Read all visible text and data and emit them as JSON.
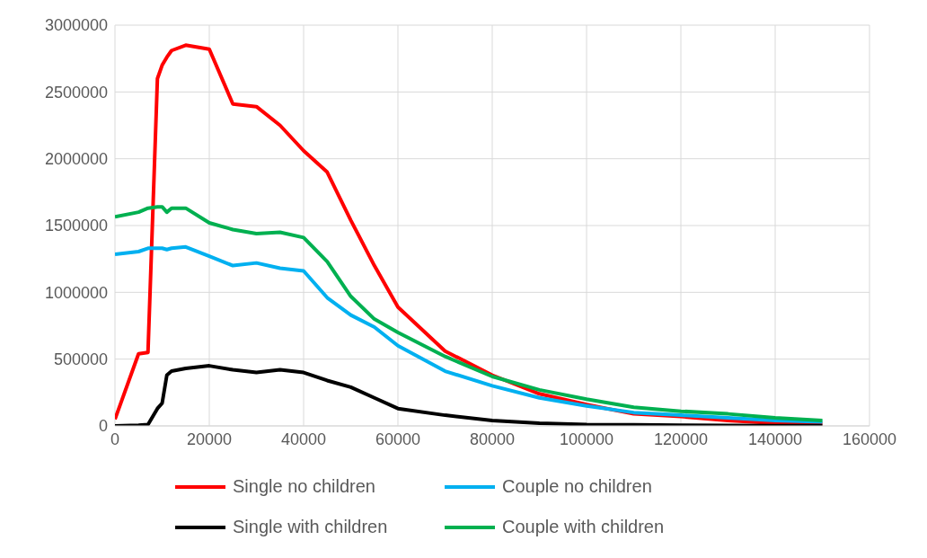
{
  "chart_data": {
    "type": "line",
    "x": [
      0,
      5000,
      7000,
      9000,
      10000,
      11000,
      12000,
      15000,
      20000,
      25000,
      30000,
      35000,
      40000,
      45000,
      50000,
      55000,
      60000,
      70000,
      80000,
      90000,
      100000,
      110000,
      120000,
      130000,
      140000,
      150000
    ],
    "series": [
      {
        "name": "Single no children",
        "color": "#ff0000",
        "values": [
          50000,
          540000,
          550000,
          2600000,
          2700000,
          2760000,
          2810000,
          2850000,
          2820000,
          2410000,
          2390000,
          2250000,
          2060000,
          1900000,
          1540000,
          1200000,
          890000,
          560000,
          380000,
          240000,
          160000,
          90000,
          70000,
          40000,
          20000,
          15000
        ]
      },
      {
        "name": "Couple no children",
        "color": "#00b0f0",
        "values": [
          1285000,
          1305000,
          1330000,
          1330000,
          1330000,
          1320000,
          1330000,
          1340000,
          1270000,
          1200000,
          1220000,
          1180000,
          1160000,
          960000,
          830000,
          740000,
          600000,
          410000,
          300000,
          210000,
          150000,
          100000,
          80000,
          60000,
          40000,
          30000
        ]
      },
      {
        "name": "Single with children",
        "color": "#000000",
        "values": [
          0,
          5000,
          10000,
          130000,
          170000,
          380000,
          410000,
          430000,
          450000,
          420000,
          400000,
          420000,
          400000,
          340000,
          290000,
          210000,
          130000,
          80000,
          40000,
          20000,
          10000,
          8000,
          5000,
          3000,
          2000,
          1000
        ]
      },
      {
        "name": "Couple with children",
        "color": "#00b050",
        "values": [
          1565000,
          1600000,
          1630000,
          1640000,
          1640000,
          1600000,
          1630000,
          1630000,
          1520000,
          1470000,
          1440000,
          1450000,
          1410000,
          1230000,
          970000,
          800000,
          700000,
          520000,
          370000,
          270000,
          200000,
          140000,
          110000,
          90000,
          60000,
          40000
        ]
      }
    ],
    "xlim": [
      0,
      160000
    ],
    "xticks": [
      0,
      20000,
      40000,
      60000,
      80000,
      100000,
      120000,
      140000,
      160000
    ],
    "ylim": [
      0,
      3000000
    ],
    "yticks": [
      0,
      500000,
      1000000,
      1500000,
      2000000,
      2500000,
      3000000
    ],
    "grid": true,
    "legend": "bottom",
    "marker": "none",
    "line_style": "solid"
  }
}
